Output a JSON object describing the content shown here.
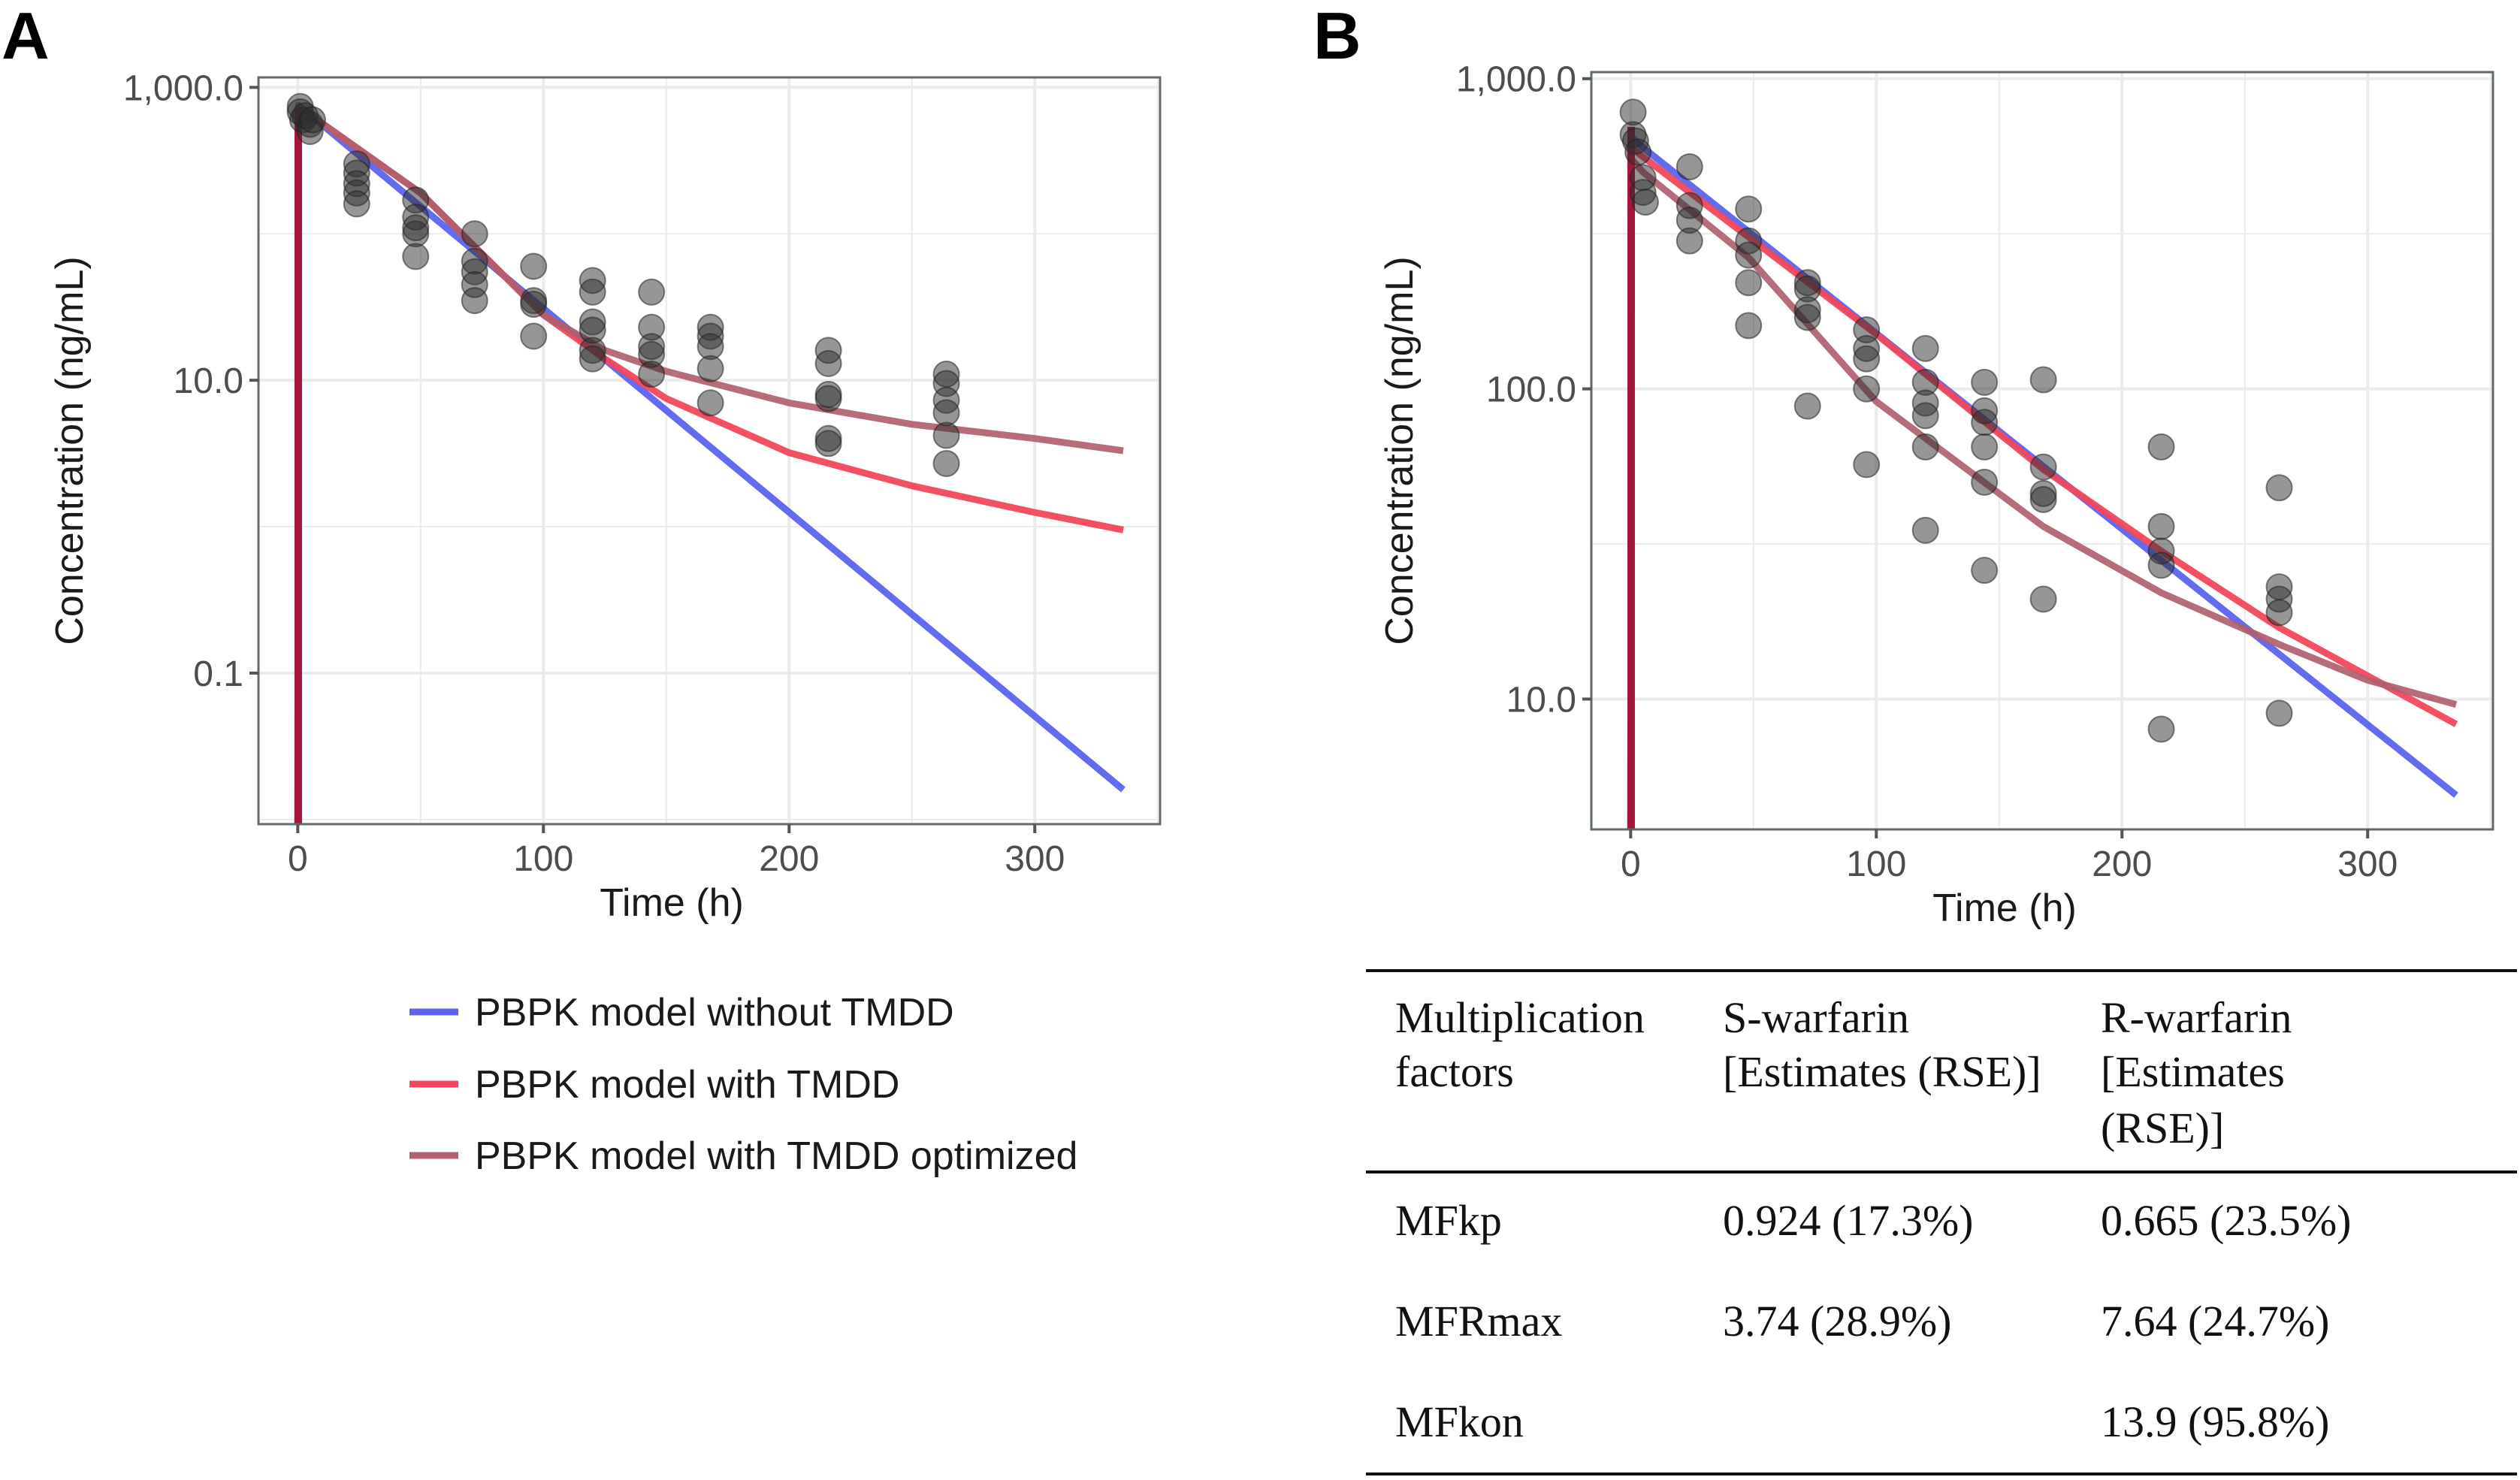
{
  "panels": [
    "A",
    "B"
  ],
  "legend": [
    {
      "label": "PBPK model without TMDD",
      "color": "#5b63ee"
    },
    {
      "label": "PBPK model with TMDD",
      "color": "#f2475c"
    },
    {
      "label": "PBPK model with TMDD optimized",
      "color": "#b0606e"
    }
  ],
  "chart_data": [
    {
      "type": "scatter+line",
      "panel": "A",
      "xlabel": "Time (h)",
      "ylabel": "Concentration (ng/mL)",
      "yscale": "log",
      "xlim": [
        -16,
        351
      ],
      "ylim": [
        0.0093,
        1170
      ],
      "xticks": [
        0,
        100,
        200,
        300
      ],
      "xtick_labels": [
        "0",
        "100",
        "200",
        "300"
      ],
      "yticks": [
        1000,
        10,
        0.1
      ],
      "ytick_labels": [
        "1,000.0",
        "10.0",
        "0.1"
      ],
      "grid": true,
      "observed": [
        [
          1,
          740
        ],
        [
          1,
          680
        ],
        [
          2,
          600
        ],
        [
          3,
          640
        ],
        [
          5,
          560
        ],
        [
          5,
          500
        ],
        [
          6,
          600
        ],
        [
          24,
          300
        ],
        [
          24,
          260
        ],
        [
          24,
          220
        ],
        [
          24,
          190
        ],
        [
          24,
          160
        ],
        [
          48,
          170
        ],
        [
          48,
          130
        ],
        [
          48,
          100
        ],
        [
          48,
          110
        ],
        [
          48,
          70
        ],
        [
          72,
          100
        ],
        [
          72,
          65
        ],
        [
          72,
          55
        ],
        [
          72,
          45
        ],
        [
          72,
          35
        ],
        [
          96,
          60
        ],
        [
          96,
          35
        ],
        [
          96,
          33
        ],
        [
          96,
          20
        ],
        [
          120,
          48
        ],
        [
          120,
          40
        ],
        [
          120,
          25
        ],
        [
          120,
          22
        ],
        [
          120,
          16
        ],
        [
          120,
          14
        ],
        [
          144,
          40
        ],
        [
          144,
          23
        ],
        [
          144,
          17
        ],
        [
          144,
          15
        ],
        [
          144,
          11
        ],
        [
          168,
          23
        ],
        [
          168,
          20
        ],
        [
          168,
          17
        ],
        [
          168,
          12
        ],
        [
          168,
          7
        ],
        [
          216,
          16
        ],
        [
          216,
          13
        ],
        [
          216,
          8
        ],
        [
          216,
          7.5
        ],
        [
          216,
          4
        ],
        [
          216,
          3.7
        ],
        [
          264,
          11
        ],
        [
          264,
          9.5
        ],
        [
          264,
          7.3
        ],
        [
          264,
          6
        ],
        [
          264,
          4.2
        ],
        [
          264,
          2.7
        ]
      ],
      "series": [
        {
          "name": "PBPK model without TMDD",
          "points": [
            [
              0,
              0.005
            ],
            [
              0.3,
              750
            ],
            [
              5,
              650
            ],
            [
              336,
              0.016
            ]
          ]
        },
        {
          "name": "PBPK model with TMDD",
          "points": [
            [
              0,
              0.005
            ],
            [
              0.3,
              750
            ],
            [
              5,
              650
            ],
            [
              50,
              190
            ],
            [
              100,
              28
            ],
            [
              125,
              14
            ],
            [
              150,
              7.5
            ],
            [
              200,
              3.2
            ],
            [
              250,
              1.9
            ],
            [
              300,
              1.25
            ],
            [
              336,
              0.95
            ]
          ]
        },
        {
          "name": "PBPK model with TMDD optimized",
          "points": [
            [
              0,
              0.005
            ],
            [
              0.3,
              750
            ],
            [
              5,
              650
            ],
            [
              50,
              190
            ],
            [
              100,
              28
            ],
            [
              125,
              16
            ],
            [
              150,
              11.5
            ],
            [
              200,
              7
            ],
            [
              250,
              5
            ],
            [
              300,
              4
            ],
            [
              336,
              3.3
            ]
          ]
        }
      ]
    },
    {
      "type": "scatter+line",
      "panel": "B",
      "xlabel": "Time (h)",
      "ylabel": "Concentration (ng/mL)",
      "yscale": "log",
      "xlim": [
        -16,
        351
      ],
      "ylim": [
        3.8,
        1050
      ],
      "xticks": [
        0,
        100,
        200,
        300
      ],
      "xtick_labels": [
        "0",
        "100",
        "200",
        "300"
      ],
      "yticks": [
        1000,
        100,
        10
      ],
      "ytick_labels": [
        "1,000.0",
        "100.0",
        "10.0"
      ],
      "grid": true,
      "observed": [
        [
          1,
          780
        ],
        [
          1,
          660
        ],
        [
          2,
          630
        ],
        [
          3,
          580
        ],
        [
          5,
          480
        ],
        [
          5,
          430
        ],
        [
          6,
          400
        ],
        [
          24,
          520
        ],
        [
          24,
          390
        ],
        [
          24,
          350
        ],
        [
          24,
          300
        ],
        [
          48,
          380
        ],
        [
          48,
          300
        ],
        [
          48,
          270
        ],
        [
          48,
          220
        ],
        [
          48,
          160
        ],
        [
          72,
          220
        ],
        [
          72,
          210
        ],
        [
          72,
          180
        ],
        [
          72,
          170
        ],
        [
          72,
          88
        ],
        [
          96,
          155
        ],
        [
          96,
          135
        ],
        [
          96,
          125
        ],
        [
          96,
          100
        ],
        [
          96,
          57
        ],
        [
          120,
          135
        ],
        [
          120,
          105
        ],
        [
          120,
          90
        ],
        [
          120,
          82
        ],
        [
          120,
          65
        ],
        [
          120,
          35
        ],
        [
          144,
          105
        ],
        [
          144,
          85
        ],
        [
          144,
          78
        ],
        [
          144,
          65
        ],
        [
          144,
          50
        ],
        [
          144,
          26
        ],
        [
          168,
          107
        ],
        [
          168,
          56
        ],
        [
          168,
          46
        ],
        [
          168,
          44
        ],
        [
          168,
          21
        ],
        [
          216,
          65
        ],
        [
          216,
          36
        ],
        [
          216,
          30
        ],
        [
          216,
          27
        ],
        [
          216,
          8
        ],
        [
          264,
          48
        ],
        [
          264,
          23
        ],
        [
          264,
          21
        ],
        [
          264,
          19
        ],
        [
          264,
          9
        ]
      ],
      "series": [
        {
          "name": "PBPK model without TMDD",
          "points": [
            [
              0,
              3
            ],
            [
              0.3,
              650
            ],
            [
              5,
              600
            ],
            [
              336,
              4.9
            ]
          ]
        },
        {
          "name": "PBPK model with TMDD",
          "points": [
            [
              0,
              3
            ],
            [
              0.3,
              600
            ],
            [
              5,
              560
            ],
            [
              100,
              150
            ],
            [
              168,
              55
            ],
            [
              216,
              30
            ],
            [
              264,
              17
            ],
            [
              336,
              8.3
            ]
          ]
        },
        {
          "name": "PBPK model with TMDD optimized",
          "points": [
            [
              0,
              3
            ],
            [
              0.3,
              550
            ],
            [
              5,
              500
            ],
            [
              48,
              265
            ],
            [
              100,
              91
            ],
            [
              168,
              36
            ],
            [
              216,
              22
            ],
            [
              264,
              15
            ],
            [
              300,
              11.5
            ],
            [
              336,
              9.6
            ]
          ]
        }
      ]
    }
  ],
  "table": {
    "headers": [
      [
        "Multiplication",
        "factors"
      ],
      [
        "S-warfarin",
        "[Estimates (RSE)]"
      ],
      [
        "R-warfarin",
        "[Estimates",
        "(RSE)]"
      ]
    ],
    "rows": [
      [
        "MFkp",
        "0.924 (17.3%)",
        "0.665 (23.5%)"
      ],
      [
        "MFRmax",
        "3.74 (28.9%)",
        "7.64 (24.7%)"
      ],
      [
        "MFkon",
        "",
        "13.9 (95.8%)"
      ]
    ]
  }
}
